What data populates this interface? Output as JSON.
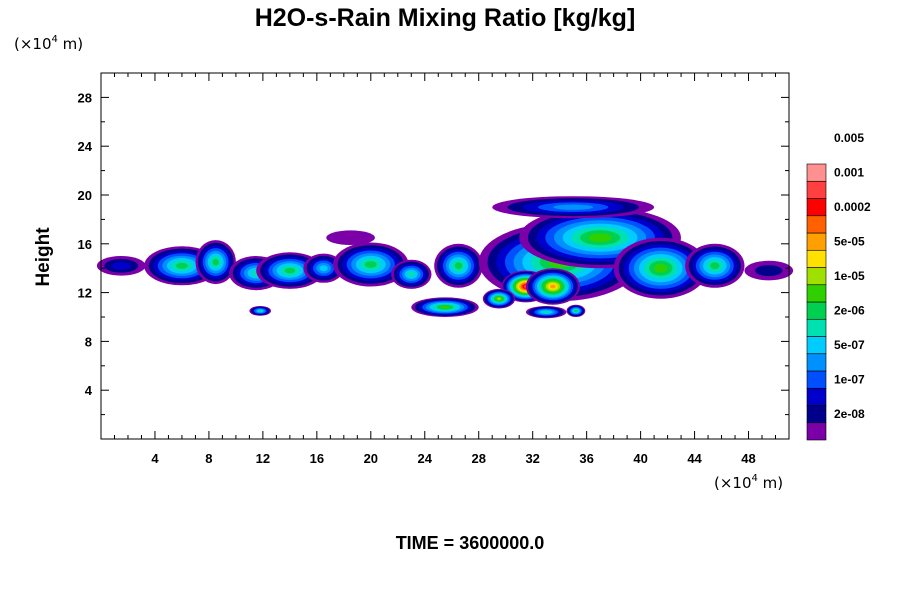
{
  "chart_data": {
    "type": "heatmap",
    "title": "H2O-s-Rain Mixing Ratio [kg/kg]",
    "ylabel": "Height",
    "x_unit_prefix": "(×10",
    "x_unit_exp": "4",
    "x_unit_suffix": " m)",
    "y_unit_prefix": "(×10",
    "y_unit_exp": "4",
    "y_unit_suffix": " m)",
    "xlim": [
      0,
      51
    ],
    "ylim": [
      0,
      30
    ],
    "x_ticks": [
      4,
      8,
      12,
      16,
      20,
      24,
      28,
      32,
      36,
      40,
      44,
      48
    ],
    "y_ticks": [
      4,
      8,
      12,
      16,
      20,
      24,
      28
    ],
    "footer": "TIME = 3600000.0",
    "colorbar": {
      "colors": [
        "#7B00A8",
        "#00008B",
        "#0000CD",
        "#0050FF",
        "#0090FF",
        "#00CCFF",
        "#00E0B0",
        "#00D050",
        "#30D000",
        "#A0E000",
        "#FFE000",
        "#FFA000",
        "#FF6000",
        "#FF0000",
        "#FF4040",
        "#FF9090"
      ],
      "labels": [
        "2e-08",
        "1e-07",
        "5e-07",
        "2e-06",
        "1e-05",
        "5e-05",
        "0.0002",
        "0.001",
        "0.005"
      ]
    },
    "field": {
      "description_levels": "level index 0-15 into colorbar colors",
      "blobs": [
        {
          "cx": 1.5,
          "cy": 14.2,
          "rx": 1.8,
          "ry": 0.8,
          "peak": 2
        },
        {
          "cx": 6.0,
          "cy": 14.2,
          "rx": 2.8,
          "ry": 1.6,
          "peak": 7
        },
        {
          "cx": 8.5,
          "cy": 14.5,
          "rx": 1.5,
          "ry": 1.8,
          "peak": 7
        },
        {
          "cx": 11.5,
          "cy": 13.6,
          "rx": 2.0,
          "ry": 1.4,
          "peak": 6
        },
        {
          "cx": 14.0,
          "cy": 13.8,
          "rx": 2.5,
          "ry": 1.5,
          "peak": 7
        },
        {
          "cx": 16.5,
          "cy": 14.0,
          "rx": 1.5,
          "ry": 1.2,
          "peak": 5
        },
        {
          "cx": 20.0,
          "cy": 14.3,
          "rx": 2.8,
          "ry": 1.8,
          "peak": 7
        },
        {
          "cx": 23.0,
          "cy": 13.5,
          "rx": 1.5,
          "ry": 1.2,
          "peak": 6
        },
        {
          "cx": 26.5,
          "cy": 14.2,
          "rx": 1.8,
          "ry": 1.8,
          "peak": 7
        },
        {
          "cx": 18.5,
          "cy": 16.5,
          "rx": 1.8,
          "ry": 0.6,
          "peak": 0
        },
        {
          "cx": 11.8,
          "cy": 10.5,
          "rx": 0.8,
          "ry": 0.4,
          "peak": 6
        },
        {
          "cx": 25.5,
          "cy": 10.8,
          "rx": 2.5,
          "ry": 0.8,
          "peak": 8
        },
        {
          "cx": 34.0,
          "cy": 14.5,
          "rx": 6.0,
          "ry": 3.2,
          "peak": 8
        },
        {
          "cx": 37.0,
          "cy": 16.5,
          "rx": 6.0,
          "ry": 2.5,
          "peak": 8
        },
        {
          "cx": 35.0,
          "cy": 19.0,
          "rx": 6.0,
          "ry": 0.9,
          "peak": 4
        },
        {
          "cx": 41.5,
          "cy": 14.0,
          "rx": 3.5,
          "ry": 2.5,
          "peak": 8
        },
        {
          "cx": 45.5,
          "cy": 14.2,
          "rx": 2.2,
          "ry": 1.8,
          "peak": 7
        },
        {
          "cx": 49.5,
          "cy": 13.8,
          "rx": 1.8,
          "ry": 0.8,
          "peak": 1
        },
        {
          "cx": 31.5,
          "cy": 12.5,
          "rx": 1.8,
          "ry": 1.3,
          "peak": 14
        },
        {
          "cx": 33.5,
          "cy": 12.5,
          "rx": 2.0,
          "ry": 1.5,
          "peak": 11
        },
        {
          "cx": 29.5,
          "cy": 11.5,
          "rx": 1.2,
          "ry": 0.8,
          "peak": 9
        },
        {
          "cx": 33.0,
          "cy": 10.4,
          "rx": 1.5,
          "ry": 0.5,
          "peak": 6
        },
        {
          "cx": 35.2,
          "cy": 10.5,
          "rx": 0.7,
          "ry": 0.5,
          "peak": 7
        }
      ]
    }
  }
}
